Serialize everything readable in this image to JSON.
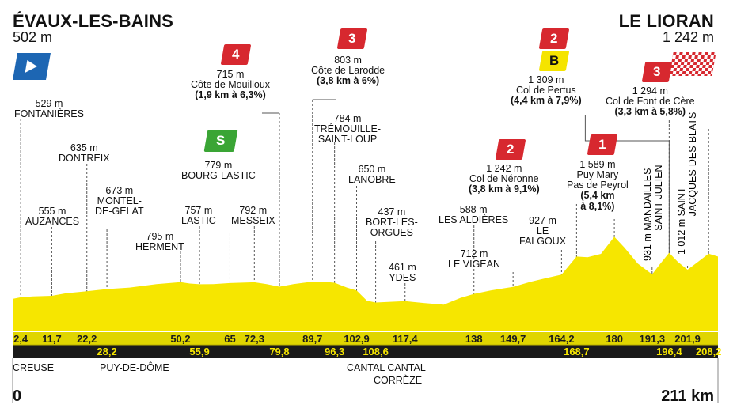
{
  "stage": {
    "start_name": "ÉVAUX-LES-BAINS",
    "start_elevation": "502 m",
    "finish_name": "LE LIORAN",
    "finish_elevation": "1 242 m",
    "start_km": "0",
    "finish_km": "211 km"
  },
  "colors": {
    "profile_fill": "#f6e600",
    "km_bar": "#e0d500",
    "km_bar_dark": "#1a1a1a",
    "climb_red": "#d7282f",
    "sprint_green": "#3aa535",
    "bonus_yellow": "#f5e400",
    "start_flag_blue": "#1d66b3"
  },
  "icons": {
    "start": "start-flag-icon",
    "finish": "finish-flag-icon",
    "sprint": "intermediate-sprint-icon",
    "bonus": "bonus-point-icon"
  },
  "departments": [
    "CREUSE",
    "PUY-DE-DÔME",
    "CANTAL CANTAL",
    "CORRÈZE"
  ],
  "chart_data": {
    "type": "area",
    "title": "",
    "xlabel": "",
    "ylabel": "",
    "x_unit": "km",
    "y_unit": "m",
    "xlim": [
      0,
      211
    ],
    "grid": false,
    "profile_points": [
      {
        "km": 0,
        "alt": 502
      },
      {
        "km": 2.4,
        "alt": 529
      },
      {
        "km": 6,
        "alt": 545
      },
      {
        "km": 11.7,
        "alt": 555
      },
      {
        "km": 16,
        "alt": 600
      },
      {
        "km": 22.2,
        "alt": 635
      },
      {
        "km": 28.2,
        "alt": 673
      },
      {
        "km": 35,
        "alt": 700
      },
      {
        "km": 43,
        "alt": 760
      },
      {
        "km": 50.2,
        "alt": 795
      },
      {
        "km": 53,
        "alt": 770
      },
      {
        "km": 55.9,
        "alt": 757
      },
      {
        "km": 60,
        "alt": 760
      },
      {
        "km": 65,
        "alt": 779
      },
      {
        "km": 72.3,
        "alt": 792
      },
      {
        "km": 76,
        "alt": 760
      },
      {
        "km": 79.8,
        "alt": 715
      },
      {
        "km": 84,
        "alt": 760
      },
      {
        "km": 89.7,
        "alt": 803
      },
      {
        "km": 93,
        "alt": 800
      },
      {
        "km": 96.3,
        "alt": 784
      },
      {
        "km": 100,
        "alt": 700
      },
      {
        "km": 102.9,
        "alt": 650
      },
      {
        "km": 106,
        "alt": 470
      },
      {
        "km": 108.6,
        "alt": 437
      },
      {
        "km": 113,
        "alt": 450
      },
      {
        "km": 117.4,
        "alt": 461
      },
      {
        "km": 123,
        "alt": 430
      },
      {
        "km": 129,
        "alt": 400
      },
      {
        "km": 134,
        "alt": 520
      },
      {
        "km": 138,
        "alt": 588
      },
      {
        "km": 143,
        "alt": 650
      },
      {
        "km": 149.7,
        "alt": 712
      },
      {
        "km": 155,
        "alt": 800
      },
      {
        "km": 160,
        "alt": 870
      },
      {
        "km": 164.2,
        "alt": 927
      },
      {
        "km": 168.7,
        "alt": 1242
      },
      {
        "km": 172,
        "alt": 1230
      },
      {
        "km": 176,
        "alt": 1290
      },
      {
        "km": 180,
        "alt": 1589
      },
      {
        "km": 183,
        "alt": 1400
      },
      {
        "km": 187,
        "alt": 1120
      },
      {
        "km": 191.3,
        "alt": 931
      },
      {
        "km": 193.5,
        "alt": 1100
      },
      {
        "km": 196.4,
        "alt": 1309
      },
      {
        "km": 199,
        "alt": 1150
      },
      {
        "km": 201.9,
        "alt": 1012
      },
      {
        "km": 205,
        "alt": 1150
      },
      {
        "km": 208.2,
        "alt": 1294
      },
      {
        "km": 211,
        "alt": 1242
      }
    ],
    "km_markers_top": [
      "2,4",
      "11,7",
      "22,2",
      "50,2",
      "65",
      "72,3",
      "89,7",
      "102,9",
      "117,4",
      "138",
      "149,7",
      "164,2",
      "180",
      "191,3",
      "201,9"
    ],
    "km_markers_top_values": [
      2.4,
      11.7,
      22.2,
      50.2,
      65,
      72.3,
      89.7,
      102.9,
      117.4,
      138,
      149.7,
      164.2,
      180,
      191.3,
      201.9
    ],
    "km_markers_bottom": [
      "28,2",
      "55,9",
      "79,8",
      "96,3",
      "108,6",
      "168,7",
      "196,4",
      "208,2"
    ],
    "km_markers_bottom_values": [
      28.2,
      55.9,
      79.8,
      96.3,
      108.6,
      168.7,
      196.4,
      208.2
    ],
    "waypoints": [
      {
        "km": 2.4,
        "elev": "529 m",
        "name": "FONTANIÈRES"
      },
      {
        "km": 11.7,
        "elev": "555 m",
        "name": "AUZANCES"
      },
      {
        "km": 22.2,
        "elev": "635 m",
        "name": "DONTREIX"
      },
      {
        "km": 28.2,
        "elev": "673 m",
        "name": "MONTEL-\nDE-GELAT"
      },
      {
        "km": 50.2,
        "elev": "795 m",
        "name": "HERMENT"
      },
      {
        "km": 55.9,
        "elev": "757 m",
        "name": "LASTIC"
      },
      {
        "km": 65,
        "elev": "779 m",
        "name": "BOURG-LASTIC"
      },
      {
        "km": 72.3,
        "elev": "792 m",
        "name": "MESSEIX"
      },
      {
        "km": 79.8,
        "elev": "715 m",
        "name": "Côte de Mouilloux",
        "detail": "(1,9 km à 6,3%)"
      },
      {
        "km": 89.7,
        "elev": "803 m",
        "name": "Côte de Larodde",
        "detail": "(3,8 km à 6%)"
      },
      {
        "km": 96.3,
        "elev": "784 m",
        "name": "TRÉMOUILLE-\nSAINT-LOUP"
      },
      {
        "km": 102.9,
        "elev": "650 m",
        "name": "LANOBRE"
      },
      {
        "km": 108.6,
        "elev": "437 m",
        "name": "BORT-LES-\nORGUES"
      },
      {
        "km": 117.4,
        "elev": "461 m",
        "name": "YDES"
      },
      {
        "km": 138,
        "elev": "588 m",
        "name": "LES ALDIÈRES"
      },
      {
        "km": 149.7,
        "elev": "712 m",
        "name": "LE VIGEAN"
      },
      {
        "km": 164.2,
        "elev": "927 m",
        "name": "LE\nFALGOUX"
      },
      {
        "km": 168.7,
        "elev": "1 242 m",
        "name": "Col de Néronne",
        "detail": "(3,8 km à 9,1%)"
      },
      {
        "km": 180,
        "elev": "1 589 m",
        "name": "Puy Mary\nPas de Peyrol",
        "detail": "(5,4 km\nà 8,1%)"
      },
      {
        "km": 191.3,
        "elev": "931 m",
        "name": "MANDAILLES-\nSAINT-JULIEN"
      },
      {
        "km": 196.4,
        "elev": "1 309 m",
        "name": "Col de Pertus",
        "detail": "(4,4 km à 7,9%)"
      },
      {
        "km": 201.9,
        "elev": "1 012 m",
        "name": "SAINT-\nJACQUES-DES-BLATS"
      },
      {
        "km": 208.2,
        "elev": "1 294 m",
        "name": "Col de Font de Cère",
        "detail": "(3,3 km à 5,8%)"
      }
    ],
    "climb_badges": [
      {
        "km": 79.8,
        "category": "4"
      },
      {
        "km": 89.7,
        "category": "3"
      },
      {
        "km": 168.7,
        "category": "2"
      },
      {
        "km": 180,
        "category": "1"
      },
      {
        "km": 196.4,
        "category": "2"
      },
      {
        "km": 208.2,
        "category": "3"
      }
    ],
    "sprint": {
      "km": 65,
      "label": "S"
    },
    "bonus": {
      "km": 196.4,
      "label": "B"
    }
  }
}
